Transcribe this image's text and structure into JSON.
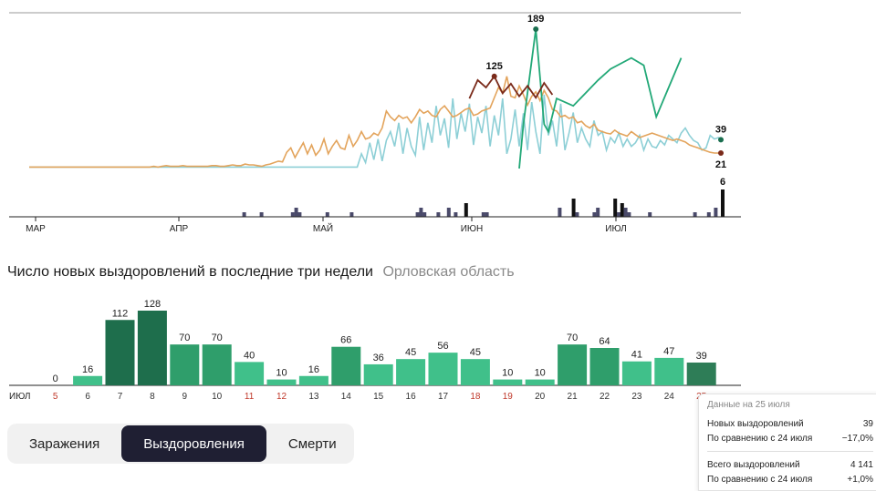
{
  "chart_data": [
    {
      "type": "line",
      "x_ticks": [
        "МАР",
        "АПР",
        "МАЙ",
        "ИЮН",
        "ИЮЛ"
      ],
      "series": [
        {
          "color": "#e3a45c",
          "values": [
            2,
            2,
            2,
            2,
            2,
            2,
            2,
            2,
            2,
            2,
            2,
            2,
            2,
            2,
            2,
            2,
            2,
            2,
            2,
            2,
            2,
            2,
            2,
            2,
            2,
            2,
            2,
            2,
            2,
            2,
            3,
            2,
            3,
            4,
            3,
            3,
            3,
            4,
            3,
            3,
            3,
            3,
            3,
            3,
            4,
            4,
            3,
            3,
            4,
            5,
            4,
            4,
            6,
            5,
            5,
            4,
            3,
            5,
            6,
            8,
            10,
            9,
            22,
            28,
            15,
            25,
            35,
            20,
            32,
            18,
            25,
            40,
            20,
            30,
            38,
            28,
            26,
            45,
            30,
            38,
            50,
            40,
            42,
            48,
            45,
            55,
            78,
            70,
            65,
            72,
            68,
            70,
            62,
            70,
            80,
            75,
            78,
            72,
            70,
            80,
            85,
            78,
            70,
            72,
            76,
            80,
            82,
            72,
            74,
            78,
            80,
            82,
            96,
            110,
            102,
            125,
            98,
            96,
            112,
            100,
            86,
            98,
            104,
            92,
            106,
            96,
            80,
            78,
            70,
            72,
            68,
            70,
            62,
            64,
            58,
            55,
            60,
            52,
            50,
            48,
            47,
            52,
            48,
            46,
            44,
            50,
            46,
            42,
            44,
            46,
            48,
            46,
            44,
            42,
            40,
            38,
            40,
            38,
            36,
            32,
            30,
            28,
            26,
            24,
            22,
            21,
            21,
            21
          ]
        },
        {
          "color": "#8dcfd6",
          "values": [
            2,
            2,
            2,
            2,
            2,
            2,
            2,
            2,
            2,
            2,
            2,
            2,
            2,
            2,
            2,
            2,
            2,
            2,
            2,
            2,
            2,
            2,
            2,
            2,
            2,
            2,
            2,
            2,
            2,
            2,
            2,
            2,
            2,
            2,
            2,
            2,
            2,
            2,
            2,
            2,
            2,
            2,
            2,
            2,
            2,
            2,
            2,
            2,
            2,
            2,
            2,
            2,
            2,
            2,
            2,
            2,
            2,
            2,
            2,
            2,
            2,
            2,
            2,
            2,
            2,
            2,
            2,
            2,
            2,
            2,
            2,
            2,
            2,
            2,
            2,
            2,
            2,
            2,
            2,
            2,
            20,
            8,
            35,
            12,
            40,
            10,
            38,
            50,
            30,
            62,
            20,
            55,
            30,
            18,
            70,
            25,
            62,
            35,
            85,
            45,
            68,
            28,
            95,
            40,
            75,
            50,
            88,
            32,
            70,
            48,
            85,
            30,
            72,
            45,
            95,
            20,
            40,
            80,
            30,
            75,
            25,
            90,
            50,
            20,
            100,
            45,
            65,
            30,
            88,
            25,
            48,
            76,
            35,
            55,
            40,
            30,
            65,
            45,
            50,
            25,
            42,
            35,
            48,
            30,
            40,
            30,
            35,
            45,
            25,
            40,
            30,
            28,
            38,
            32,
            45,
            40,
            35,
            48,
            55,
            45,
            38,
            35,
            25,
            28,
            45,
            40,
            42,
            38
          ]
        },
        {
          "color": "#1f8d66",
          "values": [
            0,
            0,
            0,
            0,
            0,
            0,
            0,
            0,
            0,
            0,
            0,
            0,
            0,
            0,
            0,
            0,
            0,
            0,
            0,
            0,
            0,
            0,
            0,
            0,
            0,
            0,
            0,
            0,
            0,
            0,
            0,
            0,
            0,
            0,
            0,
            0,
            0,
            0,
            0,
            0,
            0,
            0,
            0,
            0,
            0,
            0,
            0,
            0,
            0,
            0,
            0,
            0,
            0,
            0,
            0,
            0,
            0,
            0,
            0,
            0,
            0,
            0,
            0,
            0,
            0,
            0,
            0,
            0,
            0,
            0,
            0,
            0,
            0,
            0,
            0,
            0,
            0,
            0,
            0,
            0,
            0,
            0,
            0,
            0,
            0,
            0,
            0,
            0,
            0,
            0,
            0,
            0,
            0,
            0,
            0,
            0,
            0,
            0,
            0,
            0,
            0,
            0,
            0,
            0,
            0,
            0,
            0,
            0,
            0,
            0,
            0,
            0,
            0,
            0,
            0,
            0,
            0,
            0,
            0,
            0,
            0,
            0,
            0,
            0,
            0,
            0,
            0,
            0,
            0,
            0,
            0,
            0,
            0,
            0,
            0,
            0,
            0,
            0,
            0,
            0,
            0,
            0,
            0,
            0,
            0,
            0,
            0,
            0,
            0,
            0,
            0,
            0,
            0,
            0,
            0,
            0,
            0,
            0,
            0,
            0,
            0,
            0,
            0,
            0,
            0,
            0,
            0,
            0,
            0,
            0,
            0,
            0,
            0,
            0,
            0,
            0,
            0,
            0,
            0,
            0,
            0,
            0,
            0,
            0,
            0,
            0,
            0,
            0,
            0,
            0,
            0,
            0,
            0,
            0,
            0,
            0,
            0,
            0,
            0,
            0,
            0,
            0
          ]
        }
      ],
      "peak_labels": [
        {
          "text": "189",
          "color": "#1a6e4f"
        },
        {
          "text": "125",
          "color": "#7a2a1a"
        },
        {
          "text": "39",
          "color": "#1a6e4f"
        },
        {
          "text": "21",
          "color": "#7a2a1a"
        },
        {
          "text": "6",
          "color": "#111"
        }
      ],
      "deaths_bars": [
        0,
        0,
        0,
        0,
        0,
        0,
        0,
        0,
        0,
        0,
        0,
        0,
        0,
        0,
        0,
        0,
        0,
        0,
        0,
        0,
        0,
        0,
        0,
        0,
        0,
        0,
        0,
        0,
        0,
        0,
        0,
        0,
        0,
        0,
        0,
        0,
        0,
        0,
        0,
        0,
        0,
        0,
        0,
        0,
        0,
        0,
        0,
        0,
        0,
        0,
        0,
        0,
        0,
        0,
        0,
        0,
        0,
        0,
        0,
        0,
        0,
        0,
        1,
        0,
        0,
        0,
        0,
        1,
        0,
        0,
        0,
        0,
        0,
        0,
        0,
        0,
        1,
        2,
        1,
        0,
        0,
        0,
        0,
        0,
        0,
        0,
        1,
        0,
        0,
        0,
        0,
        0,
        0,
        1,
        0,
        0,
        0,
        0,
        0,
        0,
        0,
        0,
        0,
        0,
        0,
        0,
        0,
        0,
        0,
        0,
        0,
        0,
        1,
        2,
        1,
        0,
        0,
        0,
        1,
        0,
        0,
        2,
        0,
        1,
        0,
        0,
        3,
        0,
        0,
        0,
        0,
        1,
        1,
        0,
        0,
        0,
        0,
        0,
        0,
        0,
        0,
        0,
        0,
        0,
        0,
        0,
        0,
        0,
        0,
        0,
        0,
        0,
        0,
        2,
        0,
        0,
        0,
        4,
        1,
        0,
        0,
        0,
        0,
        1,
        2,
        0,
        0,
        0,
        0,
        4,
        1,
        3,
        2,
        1,
        0,
        0,
        0,
        0,
        0,
        1,
        0,
        0,
        0,
        0,
        0,
        0,
        0,
        0,
        0,
        0,
        0,
        0,
        1,
        0,
        0,
        0,
        1,
        0,
        2,
        0,
        6
      ]
    },
    {
      "type": "bar",
      "title": "Число новых выздоровлений в последние три недели",
      "region": "Орловская область",
      "month_label": "ИЮЛ",
      "categories": [
        "5",
        "6",
        "7",
        "8",
        "9",
        "10",
        "11",
        "12",
        "13",
        "14",
        "15",
        "16",
        "17",
        "18",
        "19",
        "20",
        "21",
        "22",
        "23",
        "24",
        "25"
      ],
      "values": [
        0,
        16,
        112,
        128,
        70,
        70,
        40,
        10,
        16,
        66,
        36,
        45,
        56,
        45,
        10,
        10,
        70,
        64,
        41,
        47,
        39
      ],
      "weekend_color": "#c0392b",
      "weekday_color": "#333333",
      "weekend_indices": [
        0,
        6,
        7,
        13,
        14,
        20
      ],
      "ylim": [
        0,
        140
      ]
    }
  ],
  "tabs": {
    "infections": "Заражения",
    "recoveries": "Выздоровления",
    "deaths": "Смерти"
  },
  "tooltip": {
    "date": "Данные на 25 июля",
    "new_label": "Новых выздоровлений",
    "new_value": "39",
    "compare1_label": "По сравнению с 24 июля",
    "compare1_value": "−17,0%",
    "total_label": "Всего выздоровлений",
    "total_value": "4 141",
    "compare2_label": "По сравнению с 24 июля",
    "compare2_value": "+1,0%"
  }
}
